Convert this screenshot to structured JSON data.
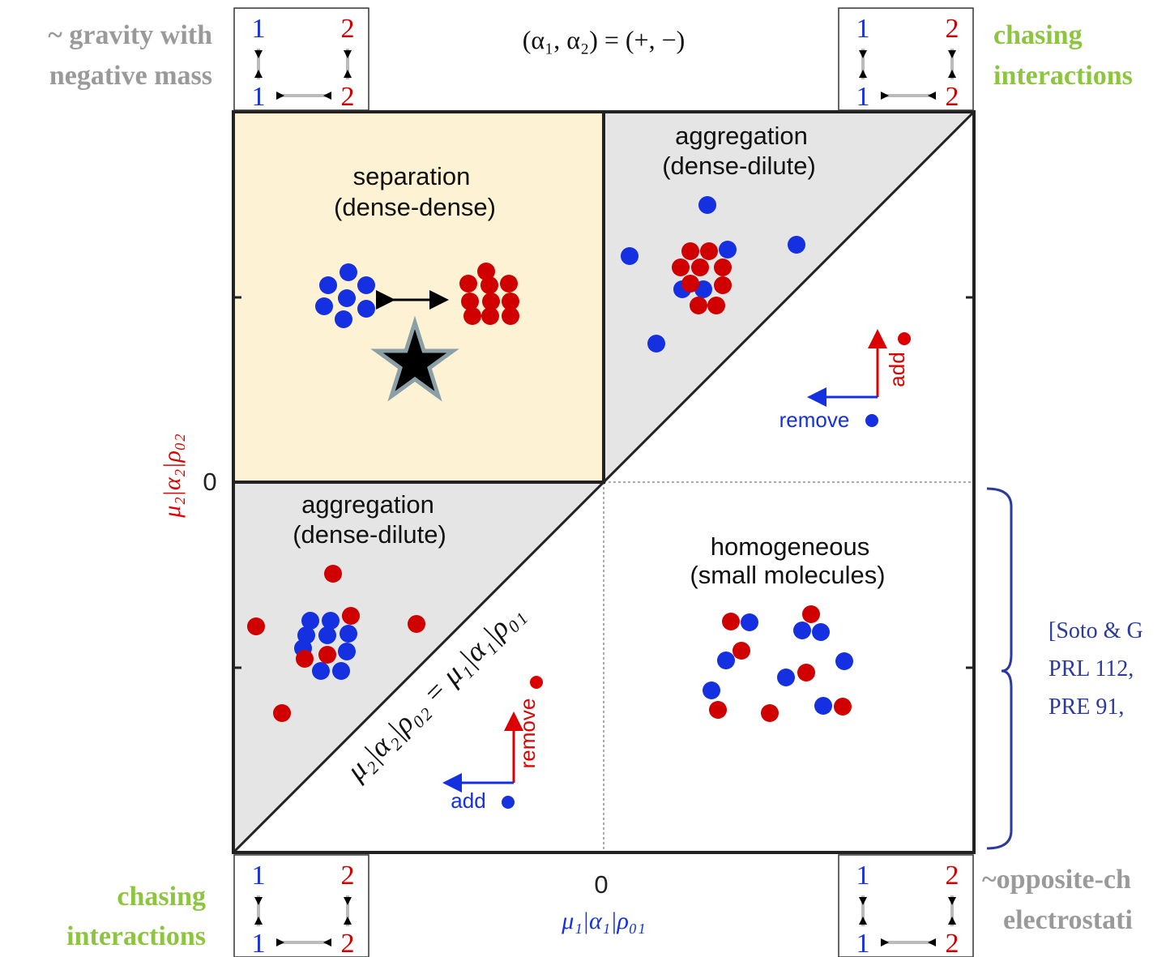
{
  "notes": {
    "top_left": [
      "~ gravity with",
      "negative mass"
    ],
    "top_right": [
      "chasing",
      "interactions"
    ],
    "bottom_left": [
      "chasing",
      "interactions"
    ],
    "bottom_right": [
      "~opposite-ch",
      "electrostati"
    ]
  },
  "sign_label": "(α₁, α₂) = (+, −)",
  "axes": {
    "x_label": "μ₁|α₁|ρ₀₁",
    "y_label": "μ₂|α₂|ρ₀₂",
    "x_tick": "0",
    "y_tick": "0",
    "diagonal": "μ₂|α₂|ρ₀₂ = μ₁|α₁|ρ₀₁"
  },
  "regions": {
    "separation": [
      "separation",
      "(dense-dense)"
    ],
    "aggregation_upper": [
      "aggregation",
      "(dense-dilute)"
    ],
    "aggregation_lower": [
      "aggregation",
      "(dense-dilute)"
    ],
    "homogeneous": [
      "homogeneous",
      "(small molecules)"
    ]
  },
  "legends": {
    "upper": {
      "red": "add",
      "blue": "remove"
    },
    "lower": {
      "red": "remove",
      "blue": "add"
    }
  },
  "species": {
    "one": "1",
    "two": "2"
  },
  "reference": [
    "[Soto & G",
    "PRL 112,",
    "PRE 91,"
  ]
}
